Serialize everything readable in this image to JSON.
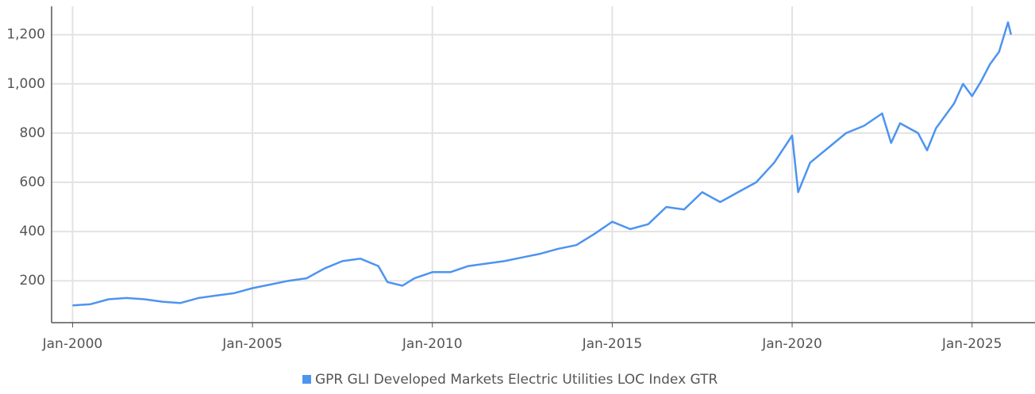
{
  "chart_data": {
    "type": "line",
    "x": [
      "2000-01",
      "2000-07",
      "2001-01",
      "2001-07",
      "2002-01",
      "2002-07",
      "2003-01",
      "2003-07",
      "2004-01",
      "2004-07",
      "2005-01",
      "2005-07",
      "2006-01",
      "2006-07",
      "2007-01",
      "2007-07",
      "2008-01",
      "2008-07",
      "2008-10",
      "2009-03",
      "2009-07",
      "2010-01",
      "2010-07",
      "2011-01",
      "2011-07",
      "2012-01",
      "2012-07",
      "2013-01",
      "2013-07",
      "2014-01",
      "2014-07",
      "2015-01",
      "2015-07",
      "2016-01",
      "2016-07",
      "2017-01",
      "2017-07",
      "2018-01",
      "2018-07",
      "2019-01",
      "2019-07",
      "2020-01",
      "2020-03",
      "2020-07",
      "2021-01",
      "2021-07",
      "2022-01",
      "2022-07",
      "2022-10",
      "2023-01",
      "2023-07",
      "2023-10",
      "2024-01",
      "2024-07",
      "2024-10",
      "2025-01",
      "2025-04",
      "2025-07",
      "2025-10",
      "2026-01",
      "2026-02"
    ],
    "series": [
      {
        "name": "GPR GLI Developed Markets Electric Utilities LOC Index GTR",
        "color": "#4d94f0",
        "values": [
          100,
          105,
          125,
          130,
          125,
          115,
          110,
          130,
          140,
          150,
          170,
          185,
          200,
          210,
          250,
          280,
          290,
          260,
          195,
          180,
          210,
          235,
          235,
          260,
          270,
          280,
          295,
          310,
          330,
          345,
          390,
          440,
          410,
          430,
          500,
          490,
          560,
          520,
          560,
          600,
          680,
          790,
          560,
          680,
          740,
          800,
          830,
          880,
          760,
          840,
          800,
          730,
          820,
          920,
          1000,
          950,
          1010,
          1080,
          1130,
          1250,
          1200
        ]
      }
    ],
    "xlim": [
      "1999-06",
      "2026-10"
    ],
    "xticks": [
      {
        "value": "2000-01",
        "label": "Jan-2000"
      },
      {
        "value": "2005-01",
        "label": "Jan-2005"
      },
      {
        "value": "2010-01",
        "label": "Jan-2010"
      },
      {
        "value": "2015-01",
        "label": "Jan-2015"
      },
      {
        "value": "2020-01",
        "label": "Jan-2020"
      },
      {
        "value": "2025-01",
        "label": "Jan-2025"
      }
    ],
    "ylim": [
      30,
      1315
    ],
    "yticks": [
      200,
      400,
      600,
      800,
      {
        "value": 1000,
        "label": "1,000"
      },
      {
        "value": 1200,
        "label": "1,200"
      }
    ],
    "grid": true,
    "legend": "bottom"
  }
}
